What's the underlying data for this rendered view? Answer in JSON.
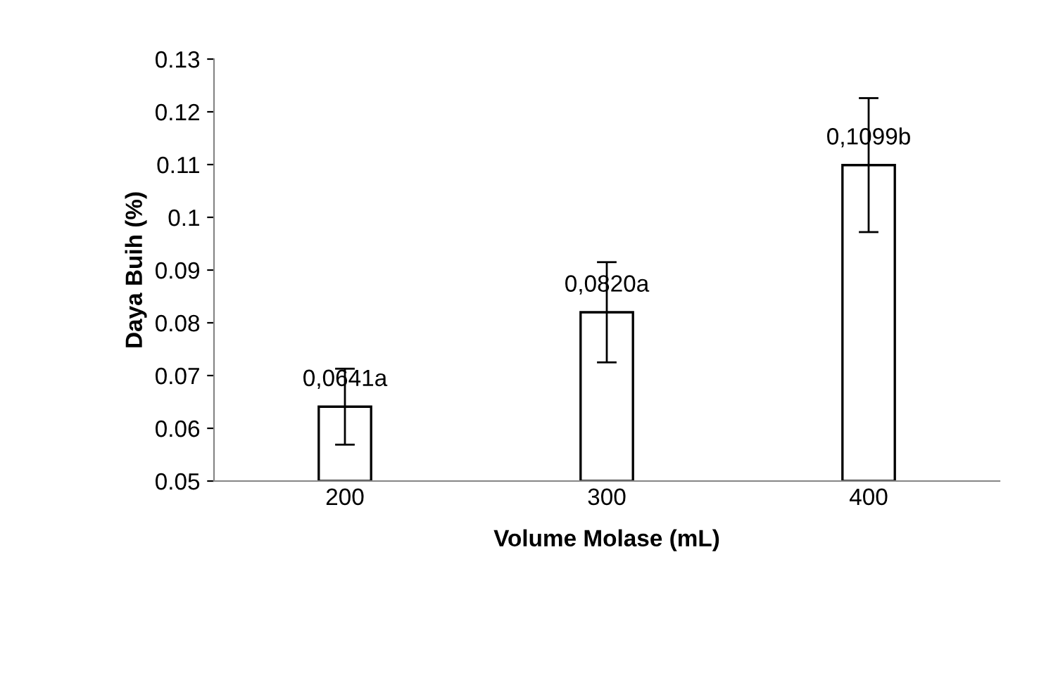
{
  "chart_data": {
    "type": "bar",
    "xlabel": "Volume Molase (mL)",
    "ylabel": "Daya Buih (%)",
    "categories": [
      "200",
      "300",
      "400"
    ],
    "values": [
      0.0641,
      0.082,
      0.1099
    ],
    "errors": [
      0.0072,
      0.0095,
      0.0127
    ],
    "value_labels": [
      "0,0641a",
      "0,0820a",
      "0,1099b"
    ],
    "color": "#ffffff",
    "ylim": [
      0.05,
      0.13
    ],
    "yticks": [
      0.05,
      0.06,
      0.07,
      0.08,
      0.09,
      0.1,
      0.11,
      0.12,
      0.13
    ],
    "grid": false,
    "legend": false
  }
}
